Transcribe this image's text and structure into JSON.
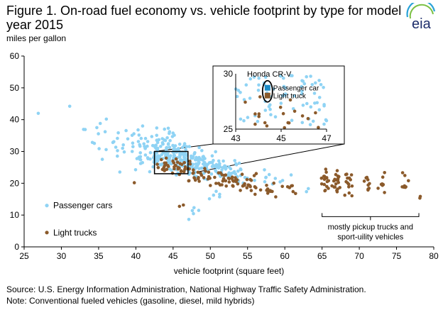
{
  "title": "Figure 1. On-road fuel economy vs. vehicle footprint by type for model year 2015",
  "y_units": "miles per gallon",
  "logo_text": "eia",
  "source": "Source: U.S. Energy Information Administration, National Highway Traffic Safety Administration.",
  "note": "Note: Conventional fueled vehicles (gasoline, diesel, mild hybrids)",
  "colors": {
    "passenger": "#8fd3f4",
    "light": "#8b5a2b",
    "inset_passenger": "#1a8cc8"
  },
  "chart_data": {
    "type": "scatter",
    "title": "Figure 1. On-road fuel economy vs. vehicle footprint by type for model year 2015",
    "xlabel": "vehicle footprint (square feet)",
    "ylabel": "miles per gallon",
    "xlim": [
      25,
      80
    ],
    "ylim": [
      0,
      60
    ],
    "x_ticks": [
      "25",
      "30",
      "35",
      "40",
      "45",
      "50",
      "55",
      "60",
      "65",
      "70",
      "75",
      "80"
    ],
    "y_ticks": [
      "0",
      "10",
      "20",
      "30",
      "40",
      "50",
      "60"
    ],
    "grid": false,
    "series": [
      {
        "name": "Passenger cars",
        "clusters": [
          [
            27,
            42,
            0.3,
            0.5,
            1
          ],
          [
            31,
            44,
            0.3,
            0.5,
            1
          ],
          [
            33,
            37,
            0.3,
            1.5,
            2
          ],
          [
            35,
            35,
            1.2,
            5,
            8
          ],
          [
            37.5,
            32,
            1.5,
            6,
            12
          ],
          [
            40,
            31,
            1.5,
            5,
            22
          ],
          [
            42,
            30,
            1.6,
            4.5,
            38
          ],
          [
            44,
            29,
            1.6,
            4,
            55
          ],
          [
            46,
            28,
            1.6,
            4,
            65
          ],
          [
            48,
            26,
            1.5,
            3.5,
            55
          ],
          [
            50,
            25,
            1.5,
            3.5,
            45
          ],
          [
            52,
            24,
            1.4,
            3,
            25
          ],
          [
            54.5,
            23,
            1.4,
            2.5,
            14
          ],
          [
            57,
            22,
            1.3,
            2,
            7
          ],
          [
            60,
            21,
            1,
            1.5,
            3
          ],
          [
            63,
            18,
            0.6,
            1,
            2
          ],
          [
            44.5,
            36,
            1.5,
            3,
            10
          ],
          [
            48,
            11,
            1,
            2,
            5
          ],
          [
            51,
            16,
            1,
            2,
            5
          ]
        ]
      },
      {
        "name": "Light trucks",
        "clusters": [
          [
            40,
            20,
            0.3,
            0.3,
            1
          ],
          [
            44,
            25,
            1.2,
            2,
            18
          ],
          [
            46,
            25,
            1.4,
            2.5,
            22
          ],
          [
            49,
            22,
            1.5,
            2.5,
            22
          ],
          [
            52,
            21,
            1.5,
            2.5,
            26
          ],
          [
            55,
            20,
            1.5,
            2.5,
            22
          ],
          [
            58,
            18,
            1.5,
            2,
            14
          ],
          [
            61,
            18,
            1,
            1.5,
            6
          ],
          [
            65.5,
            21,
            0.5,
            3.5,
            16
          ],
          [
            67,
            21,
            0.5,
            3.5,
            18
          ],
          [
            68.5,
            20,
            0.5,
            3,
            14
          ],
          [
            71,
            20,
            0.4,
            2.5,
            10
          ],
          [
            73,
            20,
            0.4,
            2.5,
            8
          ],
          [
            76,
            20,
            0.4,
            2.5,
            8
          ],
          [
            78,
            16,
            0.3,
            1,
            2
          ],
          [
            46,
            13,
            0.5,
            1,
            2
          ]
        ]
      }
    ],
    "legend": [
      "Passenger cars",
      "Light trucks"
    ],
    "legend_position": "bottom-left",
    "annotations": {
      "bracket_text": "mostly pickup trucks and sport-uility vehicles",
      "bracket_x": [
        65,
        78
      ],
      "zoom_box": {
        "x": [
          42.5,
          47
        ],
        "y": [
          23,
          30
        ]
      }
    },
    "inset": {
      "label": "Honda CR-V",
      "xlim": [
        43,
        47
      ],
      "ylim": [
        25,
        30
      ],
      "x_ticks": [
        "43",
        "45",
        "47"
      ],
      "y_ticks": [
        "25",
        "30"
      ],
      "legend": [
        "Passenger car",
        "Light truck"
      ],
      "highlight": {
        "x": 44.4,
        "y": 28.8
      }
    }
  }
}
